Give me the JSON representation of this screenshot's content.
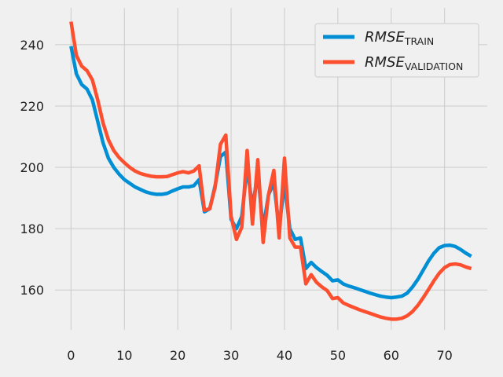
{
  "chart_data": {
    "type": "line",
    "title": "",
    "xlabel": "",
    "ylabel": "",
    "xlim": [
      -3,
      78
    ],
    "ylim": [
      147,
      252
    ],
    "xticks": [
      0,
      10,
      20,
      30,
      40,
      50,
      60,
      70
    ],
    "yticks": [
      160,
      180,
      200,
      220,
      240
    ],
    "grid": true,
    "legend_position": "top-right",
    "series": [
      {
        "name": "RMSE",
        "name_subscript": "TRAIN",
        "color": "#008fd5",
        "x": [
          0,
          1,
          2,
          3,
          4,
          5,
          6,
          7,
          8,
          9,
          10,
          11,
          12,
          13,
          14,
          15,
          16,
          17,
          18,
          19,
          20,
          21,
          22,
          23,
          24,
          25,
          26,
          27,
          28,
          29,
          30,
          31,
          32,
          33,
          34,
          35,
          36,
          37,
          38,
          39,
          40,
          41,
          42,
          43,
          44,
          45,
          46,
          47,
          48,
          49,
          50,
          51,
          52,
          53,
          54,
          55,
          56,
          57,
          58,
          59,
          60,
          61,
          62,
          63,
          64,
          65,
          66,
          67,
          68,
          69,
          70,
          71,
          72,
          73,
          74,
          75
        ],
        "values": [
          239.5,
          230.5,
          227,
          225.5,
          222,
          215,
          208,
          203,
          200,
          197.8,
          196,
          194.8,
          193.6,
          192.8,
          192,
          191.5,
          191.2,
          191.2,
          191.5,
          192.3,
          193,
          193.6,
          193.6,
          194,
          196,
          185.5,
          186.5,
          194,
          203.5,
          205,
          183,
          180,
          184,
          200,
          187,
          198,
          180,
          191,
          195,
          180,
          195,
          180,
          176.5,
          177,
          167,
          169,
          167.3,
          166,
          164.8,
          163,
          163.3,
          162,
          161.3,
          160.8,
          160.2,
          159.6,
          159,
          158.5,
          158,
          157.7,
          157.5,
          157.7,
          158,
          159,
          161,
          163.5,
          166.5,
          169.5,
          172,
          173.8,
          174.5,
          174.6,
          174.2,
          173.2,
          172,
          171
        ]
      },
      {
        "name": "RMSE",
        "name_subscript": "VALIDATION",
        "color": "#fc4f30",
        "x": [
          0,
          1,
          2,
          3,
          4,
          5,
          6,
          7,
          8,
          9,
          10,
          11,
          12,
          13,
          14,
          15,
          16,
          17,
          18,
          19,
          20,
          21,
          22,
          23,
          24,
          25,
          26,
          27,
          28,
          29,
          30,
          31,
          32,
          33,
          34,
          35,
          36,
          37,
          38,
          39,
          40,
          41,
          42,
          43,
          44,
          45,
          46,
          47,
          48,
          49,
          50,
          51,
          52,
          53,
          54,
          55,
          56,
          57,
          58,
          59,
          60,
          61,
          62,
          63,
          64,
          65,
          66,
          67,
          68,
          69,
          70,
          71,
          72,
          73,
          74,
          75
        ],
        "values": [
          247.5,
          236.5,
          233,
          231.5,
          228.5,
          222,
          214.5,
          209,
          205.5,
          203.2,
          201.5,
          200,
          198.8,
          198,
          197.5,
          197.1,
          196.9,
          196.9,
          197,
          197.6,
          198.2,
          198.6,
          198.2,
          198.8,
          200.5,
          186,
          186.5,
          193.5,
          207.5,
          210.5,
          184,
          176.5,
          180.5,
          205.5,
          181.5,
          202.5,
          175.5,
          191,
          199,
          177,
          203,
          177,
          174,
          174,
          162,
          165,
          162.5,
          161,
          159.8,
          157.2,
          157.5,
          155.8,
          155,
          154.3,
          153.6,
          153,
          152.4,
          151.8,
          151.2,
          150.8,
          150.5,
          150.5,
          150.8,
          151.6,
          153,
          155,
          157.5,
          160.2,
          163,
          165.5,
          167.3,
          168.3,
          168.5,
          168.2,
          167.5,
          167
        ]
      }
    ]
  }
}
